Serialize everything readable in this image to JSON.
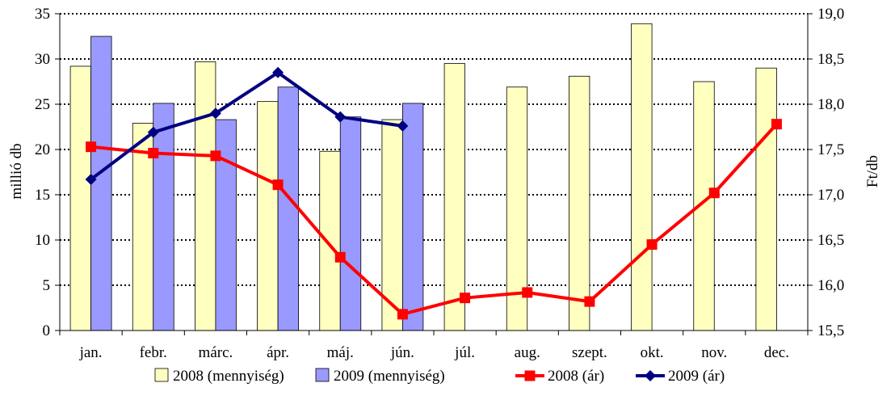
{
  "chart_data": {
    "type": "bar",
    "categories": [
      "jan.",
      "febr.",
      "márc.",
      "ápr.",
      "máj.",
      "jún.",
      "júl.",
      "aug.",
      "szept.",
      "okt.",
      "nov.",
      "dec."
    ],
    "series": [
      {
        "name": "2008 (mennyiség)",
        "type": "bar",
        "axis": "left",
        "color": "#ffffc0",
        "values": [
          29.2,
          22.9,
          29.7,
          25.3,
          19.8,
          23.3,
          29.5,
          26.9,
          28.1,
          33.9,
          27.5,
          29.0
        ]
      },
      {
        "name": "2009 (mennyiség)",
        "type": "bar",
        "axis": "left",
        "color": "#9999ff",
        "values": [
          32.5,
          25.1,
          23.3,
          26.9,
          23.6,
          25.1,
          null,
          null,
          null,
          null,
          null,
          null
        ]
      },
      {
        "name": "2008 (ár)",
        "type": "line",
        "axis": "right",
        "color": "#ff0000",
        "marker": "square",
        "values": [
          17.53,
          17.46,
          17.43,
          17.11,
          16.31,
          15.68,
          15.86,
          15.92,
          15.82,
          16.45,
          17.02,
          17.78
        ]
      },
      {
        "name": "2009 (ár)",
        "type": "line",
        "axis": "right",
        "color": "#000080",
        "marker": "diamond",
        "values": [
          17.17,
          17.69,
          17.9,
          18.35,
          17.86,
          17.76,
          null,
          null,
          null,
          null,
          null,
          null
        ]
      }
    ],
    "ylabel": "millió db",
    "y2label": "Ft/db",
    "ylim": [
      0,
      35
    ],
    "y2lim": [
      15.5,
      19.0
    ],
    "yticks": [
      "0",
      "5",
      "10",
      "15",
      "20",
      "25",
      "30",
      "35"
    ],
    "y2ticks": [
      "15,5",
      "16,0",
      "16,5",
      "17,0",
      "17,5",
      "18,0",
      "18,5",
      "19,0"
    ],
    "grid": "horizontal-dotted",
    "legend_position": "bottom"
  }
}
